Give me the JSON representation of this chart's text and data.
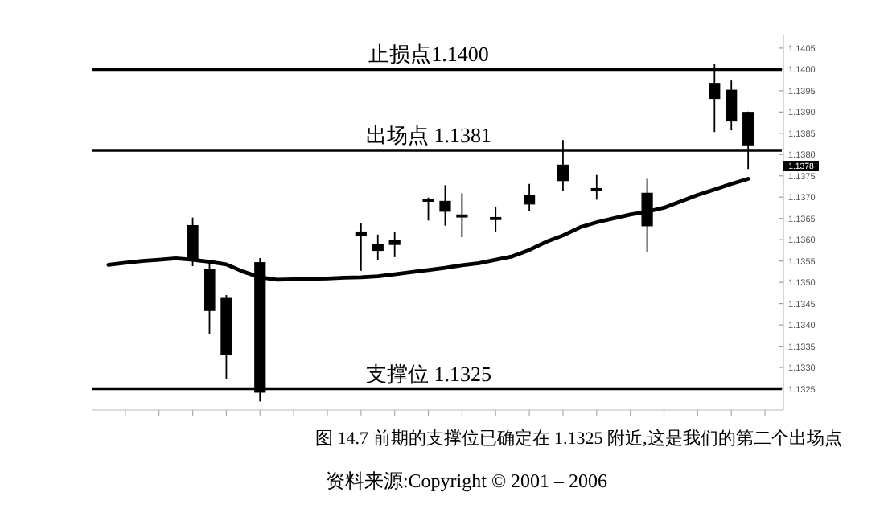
{
  "chart_data": {
    "type": "candlestick",
    "categories": [
      null,
      null,
      null,
      null,
      null,
      null,
      null,
      null,
      null,
      null,
      null,
      null,
      null,
      null,
      null,
      null,
      null,
      null,
      null,
      null,
      null,
      null,
      null,
      null,
      null,
      null,
      null,
      null,
      null,
      null,
      null,
      null,
      null,
      null,
      null,
      null,
      null,
      null,
      null,
      null
    ],
    "series": [
      {
        "type": "line",
        "color": "#000000",
        "values": [
          1.13541,
          1.13546,
          1.1355,
          1.13553,
          1.13556,
          1.13553,
          1.13548,
          1.13542,
          1.13525,
          1.13512,
          1.13506,
          1.13507,
          1.13508,
          1.13509,
          1.13511,
          1.13512,
          1.13514,
          1.13519,
          1.13524,
          1.13529,
          1.13534,
          1.1354,
          1.13545,
          1.13553,
          1.13561,
          1.13576,
          1.13595,
          1.1361,
          1.13629,
          1.13641,
          1.1365,
          1.13659,
          1.13666,
          1.13675,
          1.1369,
          1.13705,
          1.13718,
          1.13731,
          1.13743,
          null
        ]
      },
      {
        "type": "candlestick",
        "color": "#000000",
        "ohlc": [
          null,
          null,
          null,
          null,
          null,
          [
            1.13633,
            1.13652,
            1.13538,
            1.13553
          ],
          [
            1.13531,
            1.13546,
            1.13379,
            1.13434
          ],
          [
            1.13462,
            1.1347,
            1.13273,
            1.1333
          ],
          null,
          [
            1.13546,
            1.13557,
            1.1322,
            1.13242
          ],
          null,
          null,
          null,
          null,
          null,
          [
            1.13618,
            1.1364,
            1.13527,
            1.1361
          ],
          [
            1.13589,
            1.13612,
            1.13552,
            1.13575
          ],
          [
            1.13599,
            1.13618,
            1.13559,
            1.13589
          ],
          null,
          [
            1.13695,
            1.13699,
            1.13645,
            1.13692
          ],
          [
            1.1369,
            1.13728,
            1.13633,
            1.13667
          ],
          [
            1.13658,
            1.13709,
            1.13606,
            1.13654
          ],
          null,
          [
            1.13652,
            1.13678,
            1.13618,
            1.13648
          ],
          null,
          [
            1.13703,
            1.13731,
            1.13667,
            1.13684
          ],
          null,
          [
            1.13775,
            1.13834,
            1.13715,
            1.13739
          ],
          null,
          [
            1.1372,
            1.13752,
            1.13694,
            1.13716
          ],
          null,
          null,
          [
            1.13709,
            1.13743,
            1.13572,
            1.13633
          ],
          null,
          null,
          null,
          [
            1.13967,
            1.14014,
            1.13853,
            1.13932
          ],
          [
            1.13951,
            1.13974,
            1.13857,
            1.13879
          ],
          [
            1.13899,
            1.13901,
            1.13766,
            1.13823
          ],
          null
        ]
      }
    ],
    "ylim": [
      1.132,
      1.1408
    ],
    "yticks": [
      {
        "value": 1.1325,
        "label": "1.1325"
      },
      {
        "value": 1.133,
        "label": "1.1330"
      },
      {
        "value": 1.1335,
        "label": "1.1335"
      },
      {
        "value": 1.134,
        "label": "1.1340"
      },
      {
        "value": 1.1345,
        "label": "1.1345"
      },
      {
        "value": 1.135,
        "label": "1.1350"
      },
      {
        "value": 1.1355,
        "label": "1.1355"
      },
      {
        "value": 1.136,
        "label": "1.1360"
      },
      {
        "value": 1.1365,
        "label": "1.1365"
      },
      {
        "value": 1.137,
        "label": "1.1370"
      },
      {
        "value": 1.1375,
        "label": "1.1375"
      },
      {
        "value": 1.138,
        "label": "1.1380"
      },
      {
        "value": 1.1385,
        "label": "1.1385"
      },
      {
        "value": 1.139,
        "label": "1.1390"
      },
      {
        "value": 1.1395,
        "label": "1.1395"
      },
      {
        "value": 1.14,
        "label": "1.1400"
      },
      {
        "value": 1.1405,
        "label": "1.1405"
      }
    ],
    "tick_labels": "y",
    "ref_lines": [
      {
        "axis": "y",
        "value": 1.14,
        "label": "止损点1.1400",
        "color": "#000000"
      },
      {
        "axis": "y",
        "value": 1.1381,
        "label": "出场点 1.1381",
        "color": "#000000"
      },
      {
        "axis": "y",
        "value": 1.1325,
        "label": "支撑位 1.1325",
        "color": "#000000"
      }
    ],
    "annotations": [
      "1.1378",
      "图 14.7   前期的支撑位已确定在 1.1325 附近,这是我们的第二个出场点",
      "资料来源:Copyright © 2001 – 2006"
    ]
  }
}
